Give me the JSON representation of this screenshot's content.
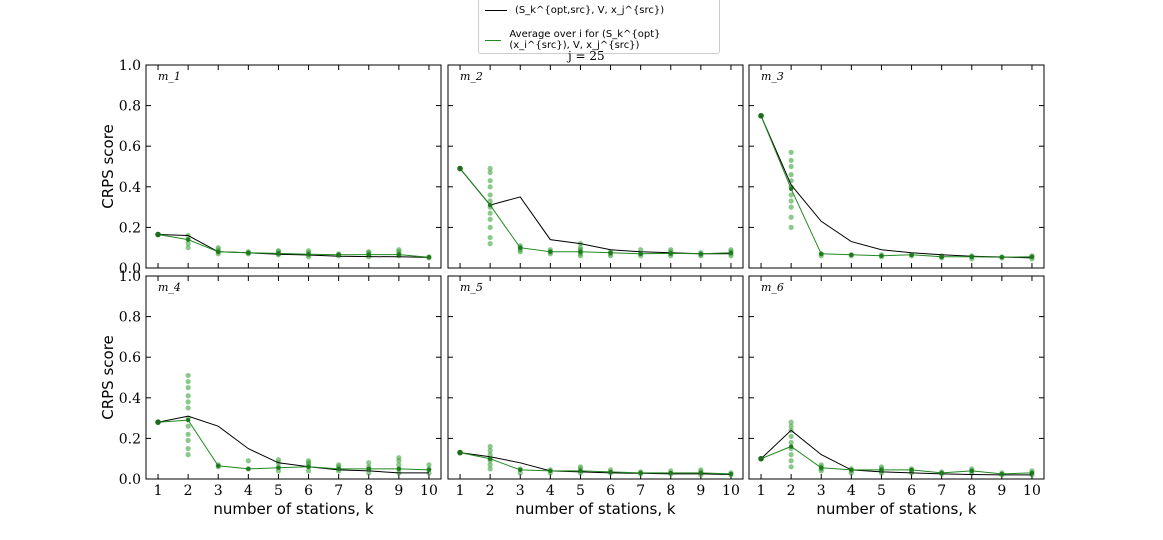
{
  "figure": {
    "suptitle": "j = 25",
    "legend": [
      {
        "label": "(S_k^{opt,src}, V, x_j^{src})",
        "color": "#000000"
      },
      {
        "label": "Average over i for (S_k^{opt}(x_i^{src}), V, x_j^{src})",
        "color": "#1f8a1f"
      }
    ]
  },
  "chart_data": [
    {
      "type": "line",
      "panel": "m1",
      "title": "m_1",
      "xlabel": "",
      "ylabel": "CRPS score",
      "ylim": [
        0,
        1
      ],
      "categories": [
        1,
        2,
        3,
        4,
        5,
        6,
        7,
        8,
        9,
        10
      ],
      "series": [
        {
          "name": "opt-src",
          "color": "#000000",
          "values": [
            0.165,
            0.16,
            0.08,
            0.075,
            0.068,
            0.064,
            0.058,
            0.056,
            0.055,
            0.052
          ]
        },
        {
          "name": "average",
          "color": "#1f8a1f",
          "values": [
            0.165,
            0.14,
            0.08,
            0.075,
            0.072,
            0.068,
            0.065,
            0.066,
            0.066,
            0.053
          ]
        }
      ],
      "scatter": [
        [
          1,
          [
            0.165
          ]
        ],
        [
          2,
          [
            0.1,
            0.12,
            0.14,
            0.16
          ]
        ],
        [
          3,
          [
            0.07,
            0.08,
            0.09,
            0.1
          ]
        ],
        [
          4,
          [
            0.07,
            0.075,
            0.08
          ]
        ],
        [
          5,
          [
            0.065,
            0.07,
            0.08,
            0.085
          ]
        ],
        [
          6,
          [
            0.055,
            0.065,
            0.075,
            0.085
          ]
        ],
        [
          7,
          [
            0.06,
            0.065,
            0.07
          ]
        ],
        [
          8,
          [
            0.055,
            0.065,
            0.075,
            0.08
          ]
        ],
        [
          9,
          [
            0.06,
            0.07,
            0.08,
            0.09
          ]
        ],
        [
          10,
          [
            0.05,
            0.055
          ]
        ]
      ]
    },
    {
      "type": "line",
      "panel": "m2",
      "title": "m_2",
      "xlabel": "",
      "ylabel": "",
      "ylim": [
        0,
        1
      ],
      "categories": [
        1,
        2,
        3,
        4,
        5,
        6,
        7,
        8,
        9,
        10
      ],
      "series": [
        {
          "name": "opt-src",
          "color": "#000000",
          "values": [
            0.49,
            0.31,
            0.35,
            0.14,
            0.12,
            0.09,
            0.08,
            0.075,
            0.07,
            0.07
          ]
        },
        {
          "name": "average",
          "color": "#1f8a1f",
          "values": [
            0.49,
            0.31,
            0.1,
            0.08,
            0.08,
            0.075,
            0.07,
            0.072,
            0.07,
            0.075
          ]
        }
      ],
      "scatter": [
        [
          1,
          [
            0.49
          ]
        ],
        [
          2,
          [
            0.12,
            0.15,
            0.2,
            0.24,
            0.27,
            0.3,
            0.33,
            0.36,
            0.4,
            0.43,
            0.47,
            0.49
          ]
        ],
        [
          3,
          [
            0.08,
            0.09,
            0.1,
            0.11
          ]
        ],
        [
          4,
          [
            0.07,
            0.08,
            0.09
          ]
        ],
        [
          5,
          [
            0.06,
            0.07,
            0.08,
            0.09,
            0.1,
            0.12
          ]
        ],
        [
          6,
          [
            0.06,
            0.07,
            0.08
          ]
        ],
        [
          7,
          [
            0.06,
            0.07,
            0.09
          ]
        ],
        [
          8,
          [
            0.06,
            0.07,
            0.08,
            0.09
          ]
        ],
        [
          9,
          [
            0.06,
            0.065,
            0.075
          ]
        ],
        [
          10,
          [
            0.06,
            0.07,
            0.08,
            0.09
          ]
        ]
      ]
    },
    {
      "type": "line",
      "panel": "m3",
      "title": "m_3",
      "xlabel": "",
      "ylabel": "",
      "ylim": [
        0,
        1
      ],
      "categories": [
        1,
        2,
        3,
        4,
        5,
        6,
        7,
        8,
        9,
        10
      ],
      "series": [
        {
          "name": "opt-src",
          "color": "#000000",
          "values": [
            0.75,
            0.41,
            0.23,
            0.13,
            0.09,
            0.075,
            0.065,
            0.058,
            0.054,
            0.05
          ]
        },
        {
          "name": "average",
          "color": "#1f8a1f",
          "values": [
            0.75,
            0.39,
            0.07,
            0.065,
            0.06,
            0.065,
            0.055,
            0.055,
            0.053,
            0.055
          ]
        }
      ],
      "scatter": [
        [
          1,
          [
            0.75
          ]
        ],
        [
          2,
          [
            0.2,
            0.25,
            0.3,
            0.33,
            0.36,
            0.4,
            0.43,
            0.46,
            0.5,
            0.53,
            0.57
          ]
        ],
        [
          3,
          [
            0.06,
            0.07
          ]
        ],
        [
          4,
          [
            0.06,
            0.065
          ]
        ],
        [
          5,
          [
            0.055,
            0.065
          ]
        ],
        [
          6,
          [
            0.06,
            0.065
          ]
        ],
        [
          7,
          [
            0.05,
            0.055,
            0.06
          ]
        ],
        [
          8,
          [
            0.045,
            0.055,
            0.06
          ]
        ],
        [
          9,
          [
            0.05,
            0.055
          ]
        ],
        [
          10,
          [
            0.045,
            0.055,
            0.06
          ]
        ]
      ]
    },
    {
      "type": "line",
      "panel": "m4",
      "title": "m_4",
      "xlabel": "number of stations, k",
      "ylabel": "CRPS score",
      "ylim": [
        0,
        1
      ],
      "categories": [
        1,
        2,
        3,
        4,
        5,
        6,
        7,
        8,
        9,
        10
      ],
      "series": [
        {
          "name": "opt-src",
          "color": "#000000",
          "values": [
            0.28,
            0.31,
            0.26,
            0.15,
            0.08,
            0.06,
            0.045,
            0.04,
            0.03,
            0.03
          ]
        },
        {
          "name": "average",
          "color": "#1f8a1f",
          "values": [
            0.28,
            0.29,
            0.065,
            0.05,
            0.055,
            0.06,
            0.05,
            0.05,
            0.05,
            0.045
          ]
        }
      ],
      "scatter": [
        [
          1,
          [
            0.28
          ]
        ],
        [
          2,
          [
            0.12,
            0.15,
            0.19,
            0.22,
            0.26,
            0.3,
            0.35,
            0.38,
            0.41,
            0.45,
            0.48,
            0.51
          ]
        ],
        [
          3,
          [
            0.06,
            0.07
          ]
        ],
        [
          4,
          [
            0.05,
            0.09
          ]
        ],
        [
          5,
          [
            0.04,
            0.06,
            0.08,
            0.095
          ]
        ],
        [
          6,
          [
            0.04,
            0.06,
            0.07,
            0.08,
            0.09
          ]
        ],
        [
          7,
          [
            0.04,
            0.05,
            0.06,
            0.07
          ]
        ],
        [
          8,
          [
            0.03,
            0.05,
            0.06,
            0.08
          ]
        ],
        [
          9,
          [
            0.03,
            0.05,
            0.07,
            0.09,
            0.105
          ]
        ],
        [
          10,
          [
            0.03,
            0.05,
            0.07
          ]
        ]
      ]
    },
    {
      "type": "line",
      "panel": "m5",
      "title": "m_5",
      "xlabel": "number of stations, k",
      "ylabel": "",
      "ylim": [
        0,
        1
      ],
      "categories": [
        1,
        2,
        3,
        4,
        5,
        6,
        7,
        8,
        9,
        10
      ],
      "series": [
        {
          "name": "opt-src",
          "color": "#000000",
          "values": [
            0.13,
            0.11,
            0.08,
            0.04,
            0.035,
            0.03,
            0.028,
            0.025,
            0.025,
            0.022
          ]
        },
        {
          "name": "average",
          "color": "#1f8a1f",
          "values": [
            0.13,
            0.1,
            0.045,
            0.04,
            0.04,
            0.035,
            0.03,
            0.03,
            0.03,
            0.025
          ]
        }
      ],
      "scatter": [
        [
          1,
          [
            0.13
          ]
        ],
        [
          2,
          [
            0.05,
            0.07,
            0.09,
            0.1,
            0.12,
            0.14,
            0.16
          ]
        ],
        [
          3,
          [
            0.03,
            0.05
          ]
        ],
        [
          4,
          [
            0.03,
            0.045
          ]
        ],
        [
          5,
          [
            0.03,
            0.05,
            0.06
          ]
        ],
        [
          6,
          [
            0.03,
            0.045
          ]
        ],
        [
          7,
          [
            0.025,
            0.035
          ]
        ],
        [
          8,
          [
            0.025,
            0.04
          ]
        ],
        [
          9,
          [
            0.02,
            0.035,
            0.045
          ]
        ],
        [
          10,
          [
            0.02,
            0.03
          ]
        ]
      ]
    },
    {
      "type": "line",
      "panel": "m6",
      "title": "m_6",
      "xlabel": "number of stations, k",
      "ylabel": "",
      "ylim": [
        0,
        1
      ],
      "categories": [
        1,
        2,
        3,
        4,
        5,
        6,
        7,
        8,
        9,
        10
      ],
      "series": [
        {
          "name": "opt-src",
          "color": "#000000",
          "values": [
            0.1,
            0.24,
            0.12,
            0.045,
            0.035,
            0.03,
            0.025,
            0.022,
            0.02,
            0.02
          ]
        },
        {
          "name": "average",
          "color": "#1f8a1f",
          "values": [
            0.1,
            0.16,
            0.055,
            0.045,
            0.045,
            0.045,
            0.03,
            0.04,
            0.025,
            0.03
          ]
        }
      ],
      "scatter": [
        [
          1,
          [
            0.1
          ]
        ],
        [
          2,
          [
            0.06,
            0.09,
            0.12,
            0.15,
            0.18,
            0.21,
            0.24,
            0.26,
            0.28
          ]
        ],
        [
          3,
          [
            0.04,
            0.05,
            0.06,
            0.07
          ]
        ],
        [
          4,
          [
            0.03,
            0.04,
            0.05
          ]
        ],
        [
          5,
          [
            0.03,
            0.04,
            0.05,
            0.06
          ]
        ],
        [
          6,
          [
            0.03,
            0.04,
            0.05
          ]
        ],
        [
          7,
          [
            0.025,
            0.035
          ]
        ],
        [
          8,
          [
            0.03,
            0.04,
            0.05
          ]
        ],
        [
          9,
          [
            0.02,
            0.03
          ]
        ],
        [
          10,
          [
            0.02,
            0.03,
            0.04
          ]
        ]
      ]
    }
  ]
}
